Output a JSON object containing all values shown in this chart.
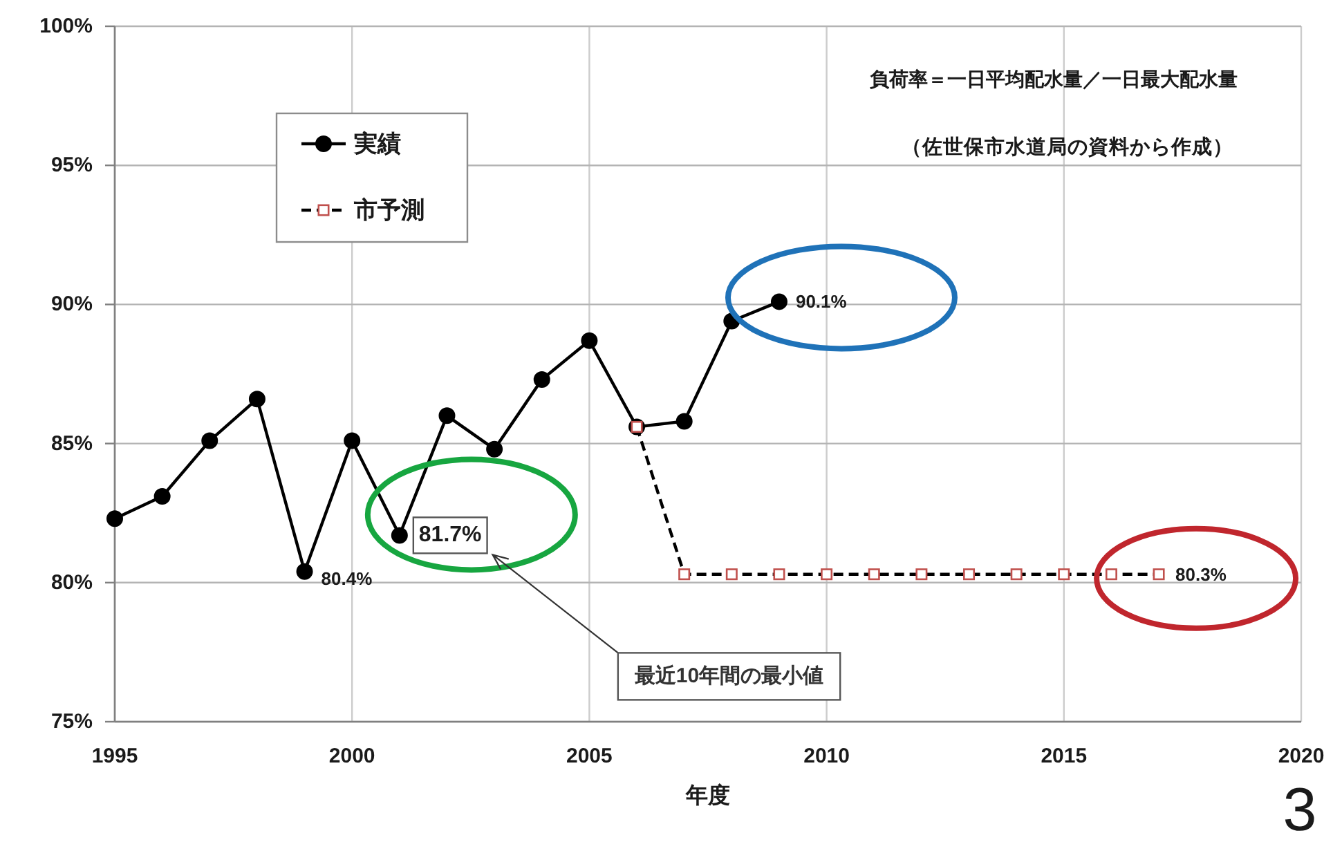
{
  "chart_data": {
    "type": "line",
    "xlabel": "年度",
    "xlim": [
      1995,
      2020
    ],
    "xticks": [
      1995,
      2000,
      2005,
      2010,
      2015,
      2020
    ],
    "ylim": [
      75,
      100
    ],
    "yticks": [
      {
        "value": 75,
        "label": "75%"
      },
      {
        "value": 80,
        "label": "80%"
      },
      {
        "value": 85,
        "label": "85%"
      },
      {
        "value": 90,
        "label": "90%"
      },
      {
        "value": 95,
        "label": "95%"
      },
      {
        "value": 100,
        "label": "100%"
      }
    ],
    "grid": true,
    "legend": "top left",
    "series": [
      {
        "name": "実績",
        "color": "#000000",
        "marker": "circle",
        "line_style": "solid",
        "x": [
          1995,
          1996,
          1997,
          1998,
          1999,
          2000,
          2001,
          2002,
          2003,
          2004,
          2005,
          2006,
          2007,
          2008,
          2009
        ],
        "values": [
          82.3,
          83.1,
          85.1,
          86.6,
          80.4,
          85.1,
          81.7,
          86.0,
          84.8,
          87.3,
          88.7,
          85.6,
          85.8,
          89.4,
          90.1
        ],
        "value_labels": [
          null,
          null,
          null,
          null,
          "80.4%",
          null,
          "81.7%",
          null,
          null,
          null,
          null,
          null,
          null,
          null,
          "90.1%"
        ]
      },
      {
        "name": "市予測",
        "color": "#000000",
        "colors": [
          "#c0504d",
          "#c0504d",
          "#c0504d",
          "#c0504d",
          "#c0504d",
          "#c0504d",
          "#c0504d",
          "#c0504d",
          "#c0504d",
          "#c0504d",
          "#c0504d",
          "#c0504d"
        ],
        "marker": "square",
        "line_style": "dashed",
        "x": [
          2006,
          2007,
          2008,
          2009,
          2010,
          2011,
          2012,
          2013,
          2014,
          2015,
          2016,
          2017
        ],
        "values": [
          85.6,
          80.3,
          80.3,
          80.3,
          80.3,
          80.3,
          80.3,
          80.3,
          80.3,
          80.3,
          80.3,
          80.3
        ],
        "value_labels": [
          null,
          null,
          null,
          null,
          null,
          null,
          null,
          null,
          null,
          null,
          null,
          "80.3%"
        ]
      }
    ],
    "annotations": [
      "負荷率＝一日平均配水量／一日最大配水量",
      "（佐世保市水道局の資料から作成）",
      "最近10年間の最小値",
      "3"
    ]
  }
}
